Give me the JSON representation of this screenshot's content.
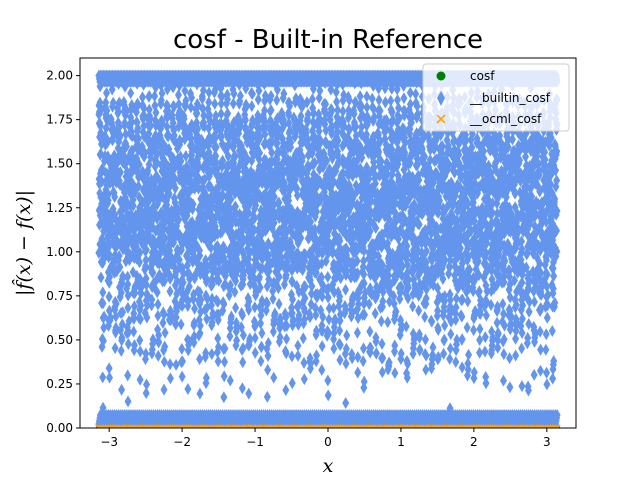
{
  "chart_data": {
    "type": "scatter",
    "title": "cosf - Built-in Reference",
    "xlabel": "x",
    "ylabel": "|f̂(x) − f(x)|",
    "xlim": [
      -3.4,
      3.4
    ],
    "ylim": [
      0,
      2.1
    ],
    "xticks": [
      -3,
      -2,
      -1,
      0,
      1,
      2,
      3
    ],
    "xtick_labels": [
      "−3",
      "−2",
      "−1",
      "0",
      "1",
      "2",
      "3"
    ],
    "yticks": [
      0,
      0.25,
      0.5,
      0.75,
      1.0,
      1.25,
      1.5,
      1.75,
      2.0
    ],
    "ytick_labels": [
      "0.00",
      "0.25",
      "0.50",
      "0.75",
      "1.00",
      "1.25",
      "1.50",
      "1.75",
      "2.00"
    ],
    "grid": false,
    "legend_position": "top-right",
    "series": [
      {
        "name": "cosf",
        "marker": "circle",
        "color": "#008000",
        "description_values": "all zero error",
        "x_range": [
          -3.14159,
          3.14159
        ],
        "y_constant": 0
      },
      {
        "name": "__builtin_cosf",
        "marker": "diamond",
        "color": "#6495ED",
        "x_range": [
          -3.14159,
          3.14159
        ],
        "y_range": [
          0,
          2.0
        ]
      },
      {
        "name": "__ocml_cosf",
        "marker": "x",
        "color": "#FFA500",
        "x_range": [
          -3.14159,
          3.14159
        ],
        "y_constant": 0
      }
    ]
  }
}
